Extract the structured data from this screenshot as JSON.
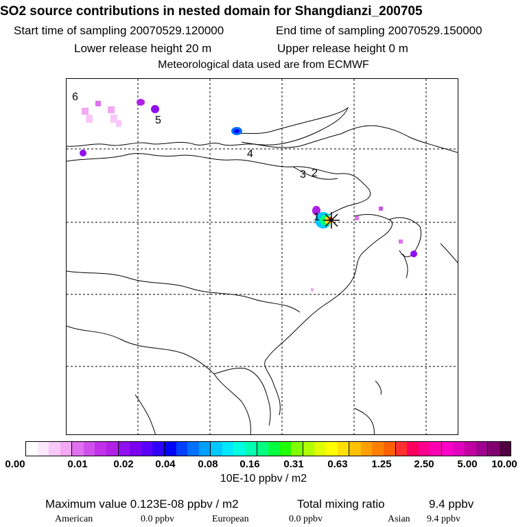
{
  "header": {
    "title": "SO2 source contributions in nested domain for Shangdianzi_200705",
    "start_label": "Start time of sampling 20070529.120000",
    "end_label": "End time of sampling 20070529.150000",
    "lower_label": "Lower release height   20 m",
    "upper_label": "Upper release height    0 m",
    "met_label": "Meteorological data used are from ECMWF"
  },
  "map": {
    "region_labels": [
      "1",
      "2",
      "3",
      "4",
      "5",
      "6"
    ],
    "plume_colors": [
      "#b44dff",
      "#8a00ff",
      "#2040ff",
      "#00c8ff",
      "#00ff90",
      "#ffe000",
      "#ff3030",
      "#d000d0",
      "#ff99ff"
    ]
  },
  "legend": {
    "ticks": [
      "0.00",
      "0.01",
      "0.02",
      "0.04",
      "0.08",
      "0.16",
      "0.31",
      "0.63",
      "1.25",
      "2.50",
      "5.00",
      "10.00"
    ],
    "colors": [
      "#ffffff",
      "#fde8fd",
      "#f8c8f8",
      "#f2a8f2",
      "#e070f0",
      "#d050ec",
      "#c030e8",
      "#b020e6",
      "#9010f0",
      "#7a00f0",
      "#5a00ff",
      "#3000ff",
      "#0000ff",
      "#0040ff",
      "#0070ff",
      "#00a0ff",
      "#00c8ff",
      "#00e8ff",
      "#00ffe0",
      "#00ffb0",
      "#00ff80",
      "#00ff40",
      "#20ff00",
      "#80ff00",
      "#b0ff00",
      "#e0ff00",
      "#ffff00",
      "#ffe000",
      "#ffc000",
      "#ffa000",
      "#ff8000",
      "#ff6000",
      "#ff3030",
      "#ff0060",
      "#ff0090",
      "#ff00b0",
      "#ff00c8",
      "#e000c0",
      "#c000a0",
      "#a00090",
      "#800070",
      "#500040"
    ],
    "unit": "10E-10 ppbv / m2"
  },
  "stats": {
    "max_label": "Maximum value  0.123E-08 ppbv / m2",
    "total_label": "Total mixing ratio",
    "total_value": "9.4 ppbv",
    "american_label": "American",
    "american_value": "0.0 ppbv",
    "european_label": "European",
    "european_value": "0.0 ppbv",
    "asian_label": "Asian",
    "asian_value": "9.4 ppbv"
  }
}
